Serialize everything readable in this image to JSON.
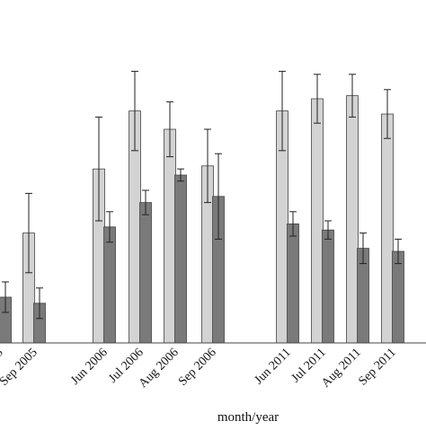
{
  "chart_data": {
    "type": "bar",
    "xlabel": "month/year",
    "ylabel": "",
    "ylim": [
      0,
      100
    ],
    "grid": false,
    "categories": [
      "S",
      "Sep 2005",
      "Jun 2006",
      "Jul 2006",
      "Aug 2006",
      "Sep 2006",
      "Jun 2011",
      "Jul 2011",
      "Aug 2011",
      "Sep 2011"
    ],
    "groups": [
      [
        "S",
        "Sep 2005"
      ],
      [
        "Jun 2006",
        "Jul 2006",
        "Aug 2006",
        "Sep 2006"
      ],
      [
        "Jun 2011",
        "Jul 2011",
        "Aug 2011",
        "Sep 2011"
      ]
    ],
    "series": [
      {
        "color": "#d3d3d3",
        "values": [
          null,
          36,
          57,
          76,
          70,
          58,
          76,
          80,
          81,
          75
        ],
        "error": [
          null,
          13,
          17,
          13,
          9,
          12,
          13,
          8,
          7,
          8
        ]
      },
      {
        "color": "#7a7a7a",
        "values": [
          15,
          13,
          38,
          46,
          55,
          48,
          39,
          37,
          31,
          30
        ],
        "error": [
          5,
          5,
          5,
          4,
          2,
          14,
          4,
          3,
          5,
          4
        ]
      }
    ]
  }
}
